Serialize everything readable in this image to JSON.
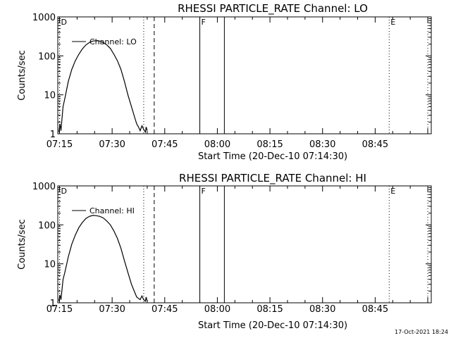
{
  "chart_data": [
    {
      "type": "line",
      "title": "RHESSI PARTICLE_RATE Channel: LO",
      "xlabel": "Start Time (20-Dec-10 07:14:30)",
      "ylabel": "Counts/sec",
      "y_scale": "log",
      "ylim": [
        1,
        1000
      ],
      "y_ticks": [
        1,
        10,
        100,
        1000
      ],
      "y_tick_labels": [
        "1",
        "10",
        "100",
        "1000"
      ],
      "xlim_minutes": [
        0,
        106.5
      ],
      "x_ticks_minutes": [
        0.5,
        15.5,
        30.5,
        45.5,
        60.5,
        75.5,
        90.5
      ],
      "x_tick_labels": [
        "07:15",
        "07:30",
        "07:45",
        "08:00",
        "08:15",
        "08:30",
        "08:45"
      ],
      "legend": [
        "Channel: LO"
      ],
      "series": [
        {
          "name": "Channel: LO",
          "x_minutes": [
            0.3,
            0.6,
            0.9,
            1.2,
            1.5,
            2.0,
            3.0,
            4.0,
            5.0,
            6.0,
            7.0,
            8.0,
            9.0,
            10.0,
            11.0,
            12.0,
            13.0,
            14.0,
            15.0,
            16.0,
            17.0,
            18.0,
            19.0,
            20.0,
            21.0,
            22.0,
            22.5,
            23.0,
            23.5,
            24.0,
            24.5,
            25.0,
            25.2,
            25.5
          ],
          "values": [
            1.1,
            1.8,
            1.2,
            2.5,
            5,
            8,
            22,
            45,
            75,
            110,
            150,
            190,
            220,
            240,
            245,
            240,
            220,
            190,
            155,
            110,
            75,
            45,
            22,
            10,
            5,
            2.5,
            1.8,
            1.5,
            1.2,
            1.6,
            1.3,
            1.1,
            1.5,
            1.2
          ]
        }
      ],
      "markers": [
        {
          "label": "D",
          "x_minutes": 0.5,
          "style": "dotted"
        },
        {
          "label": "",
          "x_minutes": 24.5,
          "style": "dotted"
        },
        {
          "label": "",
          "x_minutes": 27.5,
          "style": "dashed"
        },
        {
          "label": "F",
          "x_minutes": 40.5,
          "style": "solid"
        },
        {
          "label": "",
          "x_minutes": 47.5,
          "style": "solid"
        },
        {
          "label": "E",
          "x_minutes": 94.5,
          "style": "dotted"
        },
        {
          "label": "",
          "x_minutes": 105.5,
          "style": "dotted"
        }
      ]
    },
    {
      "type": "line",
      "title": "RHESSI PARTICLE_RATE Channel: HI",
      "xlabel": "Start Time (20-Dec-10 07:14:30)",
      "ylabel": "Counts/sec",
      "y_scale": "log",
      "ylim": [
        1,
        1000
      ],
      "y_ticks": [
        1,
        10,
        100,
        1000
      ],
      "y_tick_labels": [
        "1",
        "10",
        "100",
        "1000"
      ],
      "xlim_minutes": [
        0,
        106.5
      ],
      "x_ticks_minutes": [
        0.5,
        15.5,
        30.5,
        45.5,
        60.5,
        75.5,
        90.5
      ],
      "x_tick_labels": [
        "07:15",
        "07:30",
        "07:45",
        "08:00",
        "08:15",
        "08:30",
        "08:45"
      ],
      "legend": [
        "Channel: HI"
      ],
      "series": [
        {
          "name": "Channel: HI",
          "x_minutes": [
            0.3,
            0.6,
            0.9,
            1.2,
            1.5,
            2.0,
            3.0,
            4.0,
            5.0,
            6.0,
            7.0,
            8.0,
            9.0,
            10.0,
            11.0,
            12.0,
            13.0,
            14.0,
            15.0,
            16.0,
            17.0,
            18.0,
            19.0,
            20.0,
            21.0,
            22.0,
            22.5,
            23.0,
            23.5,
            24.0,
            24.5,
            25.0,
            25.2,
            25.5
          ],
          "values": [
            1.1,
            1.6,
            1.2,
            2.2,
            4,
            6,
            15,
            32,
            55,
            85,
            115,
            145,
            165,
            175,
            172,
            165,
            150,
            125,
            100,
            70,
            45,
            25,
            12,
            6,
            3,
            1.8,
            1.4,
            1.3,
            1.2,
            1.5,
            1.2,
            1.1,
            1.4,
            1.1
          ]
        }
      ],
      "markers": [
        {
          "label": "D",
          "x_minutes": 0.5,
          "style": "dotted"
        },
        {
          "label": "",
          "x_minutes": 24.5,
          "style": "dotted"
        },
        {
          "label": "",
          "x_minutes": 27.5,
          "style": "dashed"
        },
        {
          "label": "F",
          "x_minutes": 40.5,
          "style": "solid"
        },
        {
          "label": "",
          "x_minutes": 47.5,
          "style": "solid"
        },
        {
          "label": "E",
          "x_minutes": 94.5,
          "style": "dotted"
        },
        {
          "label": "",
          "x_minutes": 105.5,
          "style": "dotted"
        }
      ]
    }
  ],
  "footer_stamp": "17-Oct-2021 18:24"
}
